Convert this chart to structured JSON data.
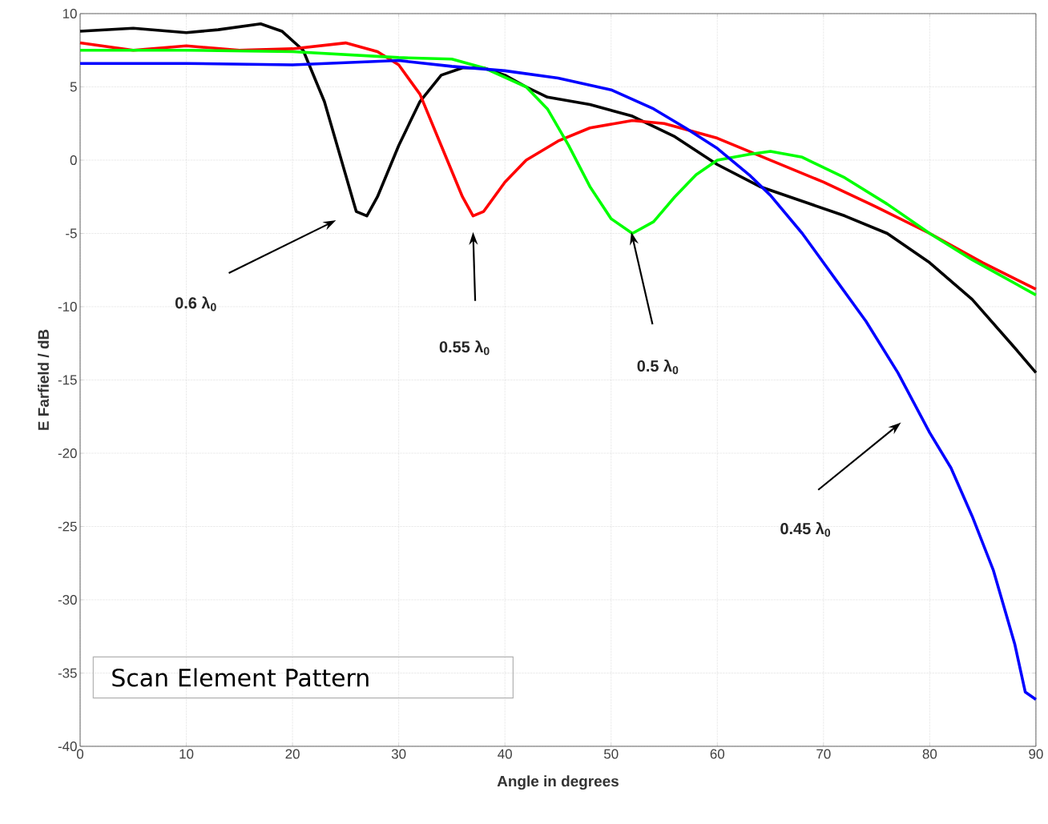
{
  "chart_data": {
    "type": "line",
    "xlabel": "Angle in degrees",
    "ylabel": "E Farfield / dB",
    "xlim": [
      0,
      90
    ],
    "ylim": [
      -40,
      10
    ],
    "xticks": [
      0,
      10,
      20,
      30,
      40,
      50,
      60,
      70,
      80,
      90
    ],
    "yticks": [
      -40,
      -35,
      -30,
      -25,
      -20,
      -15,
      -10,
      -5,
      0,
      5,
      10
    ],
    "grid": true,
    "line_style": "solid",
    "series": [
      {
        "color": "#000000",
        "x": [
          0,
          5,
          10,
          13,
          17,
          19,
          21,
          23,
          25,
          26,
          27,
          28,
          30,
          32,
          34,
          36,
          38,
          40,
          42,
          44,
          48,
          52,
          56,
          60,
          64,
          68,
          72,
          76,
          80,
          84,
          88,
          90
        ],
        "values": [
          8.8,
          9.0,
          8.7,
          8.9,
          9.3,
          8.8,
          7.5,
          4,
          -1,
          -3.5,
          -3.8,
          -2.5,
          1,
          4,
          5.8,
          6.3,
          6.3,
          5.8,
          5,
          4.3,
          3.8,
          3,
          1.6,
          -0.3,
          -1.8,
          -2.8,
          -3.8,
          -5,
          -7,
          -9.5,
          -12.8,
          -14.5
        ]
      },
      {
        "color": "#ff0000",
        "x": [
          0,
          5,
          10,
          15,
          20,
          25,
          28,
          30,
          32,
          34,
          36,
          37,
          38,
          40,
          42,
          45,
          48,
          52,
          55,
          60,
          65,
          70,
          75,
          80,
          85,
          90
        ],
        "values": [
          8,
          7.5,
          7.8,
          7.5,
          7.6,
          8,
          7.4,
          6.5,
          4.5,
          1,
          -2.5,
          -3.8,
          -3.5,
          -1.5,
          0,
          1.3,
          2.2,
          2.7,
          2.5,
          1.5,
          0,
          -1.5,
          -3.2,
          -5,
          -7,
          -8.8
        ]
      },
      {
        "color": "#00ff00",
        "x": [
          0,
          10,
          20,
          30,
          35,
          38,
          42,
          44,
          46,
          48,
          50,
          52,
          54,
          56,
          58,
          60,
          63,
          65,
          68,
          72,
          76,
          80,
          84,
          90
        ],
        "values": [
          7.5,
          7.5,
          7.4,
          7,
          6.9,
          6.3,
          5,
          3.5,
          1,
          -1.8,
          -4,
          -5,
          -4.2,
          -2.5,
          -1,
          0,
          0.4,
          0.6,
          0.2,
          -1.2,
          -3,
          -5,
          -6.8,
          -9.2
        ]
      },
      {
        "color": "#0000ff",
        "x": [
          0,
          10,
          20,
          30,
          35,
          40,
          45,
          50,
          54,
          57,
          60,
          63,
          65,
          68,
          71,
          74,
          77,
          80,
          82,
          84,
          86,
          88,
          89,
          90
        ],
        "values": [
          6.6,
          6.6,
          6.5,
          6.8,
          6.4,
          6.1,
          5.6,
          4.8,
          3.5,
          2.2,
          0.8,
          -1,
          -2.4,
          -5,
          -8,
          -11,
          -14.5,
          -18.6,
          -21,
          -24.3,
          -28,
          -33,
          -36.3,
          -36.8
        ]
      }
    ],
    "annotations": [
      "0.6 λ$_{0}$",
      "0.55 λ$_{0}$",
      "0.5 λ$_{0}$",
      "0.45 λ$_{0}$",
      "Scan Element Pattern"
    ]
  }
}
